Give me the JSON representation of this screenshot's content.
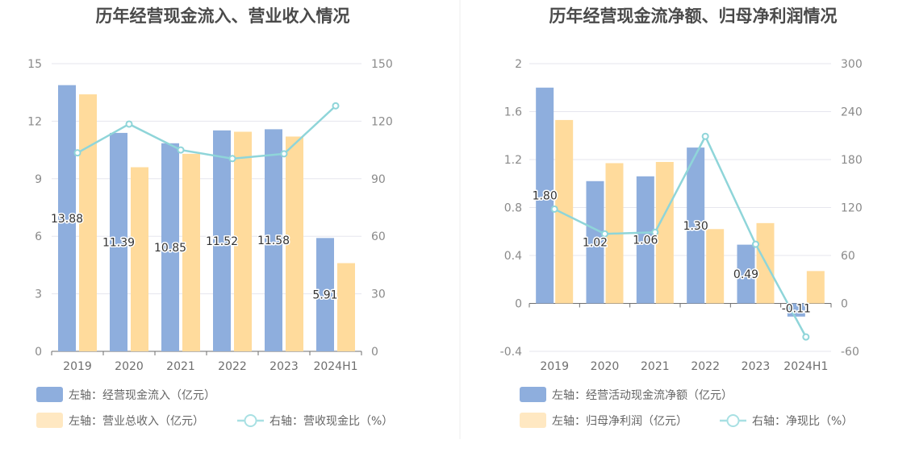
{
  "colors": {
    "primary_bar": "#8eaedd",
    "secondary_bar": "#ffdb9c",
    "line": "#8fd5d9",
    "legend_secondary": "#ffe8c2",
    "legend_line": "#a8e0e3"
  },
  "chart_data": [
    {
      "type": "bar",
      "title": "历年经营现金流入、营业收入情况",
      "categories": [
        "2019",
        "2020",
        "2021",
        "2022",
        "2023",
        "2024H1"
      ],
      "y_left": {
        "range": [
          0,
          15
        ],
        "ticks": [
          "15",
          "12",
          "9",
          "6",
          "3",
          "0"
        ]
      },
      "y_right": {
        "range": [
          0,
          150
        ],
        "ticks": [
          "150",
          "120",
          "90",
          "60",
          "30",
          "0"
        ]
      },
      "series": [
        {
          "name": "左轴：经营现金流入（亿元）",
          "type": "bar",
          "axis": "left",
          "values": [
            13.88,
            11.39,
            10.85,
            11.52,
            11.58,
            5.91
          ],
          "labels": [
            "13.88",
            "11.39",
            "10.85",
            "11.52",
            "11.58",
            "5.91"
          ]
        },
        {
          "name": "左轴：营业总收入（亿元）",
          "type": "bar",
          "axis": "left",
          "values": [
            13.4,
            9.6,
            10.3,
            11.45,
            11.2,
            4.6
          ]
        },
        {
          "name": "右轴：营收现金比（%）",
          "type": "line",
          "axis": "right",
          "values": [
            103.5,
            118.5,
            105,
            100.5,
            103,
            128
          ]
        }
      ],
      "grid": true
    },
    {
      "type": "bar",
      "title": "历年经营现金流净额、归母净利润情况",
      "categories": [
        "2019",
        "2020",
        "2021",
        "2022",
        "2023",
        "2024H1"
      ],
      "y_left": {
        "range": [
          -0.4,
          2
        ],
        "ticks": [
          "2",
          "1.6",
          "1.2",
          "0.8",
          "0.4",
          "0",
          "-0.4"
        ]
      },
      "y_right": {
        "range": [
          -60,
          300
        ],
        "ticks": [
          "300",
          "240",
          "180",
          "120",
          "60",
          "0",
          "-60"
        ]
      },
      "series": [
        {
          "name": "左轴：经营活动现金流净额（亿元）",
          "type": "bar",
          "axis": "left",
          "values": [
            1.8,
            1.02,
            1.06,
            1.3,
            0.49,
            -0.11
          ],
          "labels": [
            "1.80",
            "1.02",
            "1.06",
            "1.30",
            "0.49",
            "-0.11"
          ]
        },
        {
          "name": "左轴：归母净利润（亿元）",
          "type": "bar",
          "axis": "left",
          "values": [
            1.53,
            1.17,
            1.18,
            0.62,
            0.67,
            0.27
          ]
        },
        {
          "name": "右轴：净现比（%）",
          "type": "line",
          "axis": "right",
          "values": [
            118,
            87,
            89,
            209,
            74,
            -42
          ]
        }
      ],
      "grid": true
    }
  ]
}
